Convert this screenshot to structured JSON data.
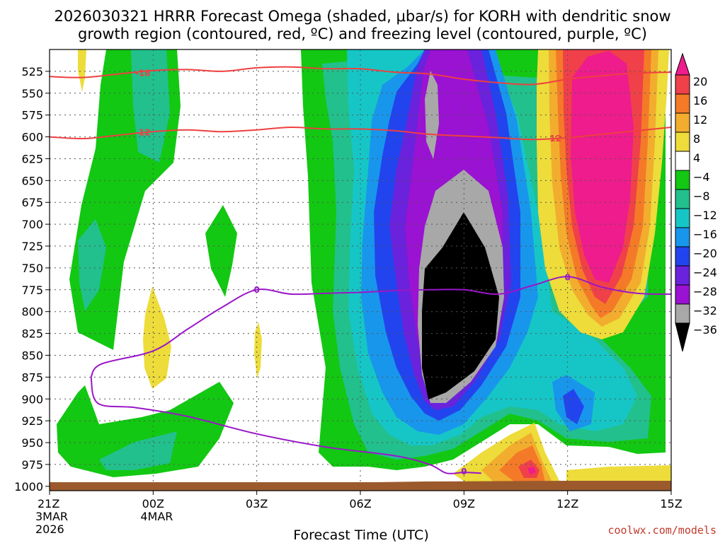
{
  "title_line1": "2026030321 HRRR Forecast Omega (shaded, μbar/s) for KORH with dendritic snow",
  "title_line2": "growth region (contoured, red, ºC) and freezing level (contoured, purple, ºC)",
  "x_axis_title": "Forecast Time (UTC)",
  "credit": "coolwx.com/models",
  "chart_data": {
    "type": "heatmap",
    "variable": "Omega (μbar/s)",
    "x_ticks": [
      {
        "hour": 0,
        "label": "21Z",
        "sub1": "3MAR",
        "sub2": "2026"
      },
      {
        "hour": 3,
        "label": "00Z",
        "sub1": "4MAR",
        "sub2": ""
      },
      {
        "hour": 6,
        "label": "03Z",
        "sub1": "",
        "sub2": ""
      },
      {
        "hour": 9,
        "label": "06Z",
        "sub1": "",
        "sub2": ""
      },
      {
        "hour": 12,
        "label": "09Z",
        "sub1": "",
        "sub2": ""
      },
      {
        "hour": 15,
        "label": "12Z",
        "sub1": "",
        "sub2": ""
      },
      {
        "hour": 18,
        "label": "15Z",
        "sub1": "",
        "sub2": ""
      }
    ],
    "xlim_hours": [
      0,
      18
    ],
    "y_ticks": [
      "525",
      "550",
      "575",
      "600",
      "625",
      "650",
      "675",
      "700",
      "725",
      "750",
      "775",
      "800",
      "825",
      "850",
      "875",
      "900",
      "925",
      "950",
      "975",
      "1000"
    ],
    "ylim_hpa": [
      500,
      1005
    ],
    "colorbar": {
      "labels": [
        "20",
        "16",
        "12",
        "8",
        "4",
        "−4",
        "−8",
        "−12",
        "−16",
        "−20",
        "−24",
        "−28",
        "−32",
        "−36"
      ],
      "bins": [
        {
          "lo": 20,
          "hi": 24,
          "color": "#ee1c8c"
        },
        {
          "lo": 16,
          "hi": 20,
          "color": "#f0404a"
        },
        {
          "lo": 12,
          "hi": 16,
          "color": "#f47a28"
        },
        {
          "lo": 8,
          "hi": 12,
          "color": "#f2ad2e"
        },
        {
          "lo": 4,
          "hi": 8,
          "color": "#eddc3a"
        },
        {
          "lo": -4,
          "hi": 4,
          "color": "#ffffff"
        },
        {
          "lo": -8,
          "hi": -4,
          "color": "#12c812"
        },
        {
          "lo": -12,
          "hi": -8,
          "color": "#22c08c"
        },
        {
          "lo": -16,
          "hi": -12,
          "color": "#16c6c6"
        },
        {
          "lo": -20,
          "hi": -16,
          "color": "#1896ec"
        },
        {
          "lo": -24,
          "hi": -20,
          "color": "#2244ee"
        },
        {
          "lo": -28,
          "hi": -24,
          "color": "#6a22dc"
        },
        {
          "lo": -32,
          "hi": -28,
          "color": "#9a12d2"
        },
        {
          "lo": -36,
          "hi": -32,
          "color": "#a8a8a8"
        },
        {
          "lo": -40,
          "hi": -36,
          "color": "#000000"
        }
      ]
    },
    "dendritic_contours": [
      {
        "label": "-18",
        "color": "#ee4040",
        "points": [
          [
            0,
            531
          ],
          [
            1,
            532
          ],
          [
            2,
            528
          ],
          [
            3,
            524
          ],
          [
            4,
            523
          ],
          [
            5,
            525
          ],
          [
            6,
            521
          ],
          [
            7,
            520
          ],
          [
            8,
            522
          ],
          [
            9,
            522
          ],
          [
            10,
            526
          ],
          [
            11,
            528
          ],
          [
            12,
            534
          ],
          [
            13,
            538
          ],
          [
            14,
            540
          ],
          [
            15,
            534
          ],
          [
            16,
            530
          ],
          [
            17,
            527
          ],
          [
            18,
            526
          ]
        ]
      },
      {
        "label": "-12",
        "color": "#ee4040",
        "points": [
          [
            0,
            600
          ],
          [
            1,
            602
          ],
          [
            2,
            598
          ],
          [
            3,
            594
          ],
          [
            4,
            592
          ],
          [
            5,
            594
          ],
          [
            6,
            592
          ],
          [
            7,
            589
          ],
          [
            8,
            591
          ],
          [
            9,
            591
          ],
          [
            10,
            593
          ],
          [
            11,
            597
          ],
          [
            12,
            599
          ],
          [
            13,
            601
          ],
          [
            14,
            603
          ],
          [
            15,
            601
          ],
          [
            16,
            597
          ],
          [
            17,
            593
          ],
          [
            18,
            589
          ]
        ]
      }
    ],
    "freezing_level": {
      "label": "0",
      "color": "#9a16c8",
      "points": [
        [
          1.2,
          875
        ],
        [
          1.5,
          860
        ],
        [
          3,
          845
        ],
        [
          4,
          820
        ],
        [
          5,
          795
        ],
        [
          6,
          775
        ],
        [
          7,
          780
        ],
        [
          8,
          779
        ],
        [
          9,
          778
        ],
        [
          10,
          776
        ],
        [
          11,
          775
        ],
        [
          12,
          775
        ],
        [
          13,
          780
        ],
        [
          14,
          770
        ],
        [
          15,
          760
        ],
        [
          16,
          772
        ],
        [
          17,
          779
        ],
        [
          18,
          780
        ],
        [
          18.2,
          780
        ]
      ],
      "branch2": [
        [
          1.2,
          875
        ],
        [
          1.4,
          905
        ],
        [
          2.5,
          910
        ],
        [
          4,
          920
        ],
        [
          6,
          940
        ],
        [
          8,
          955
        ],
        [
          10,
          965
        ],
        [
          11,
          975
        ],
        [
          11.5,
          985
        ],
        [
          12,
          984
        ],
        [
          12.5,
          985
        ]
      ]
    }
  }
}
